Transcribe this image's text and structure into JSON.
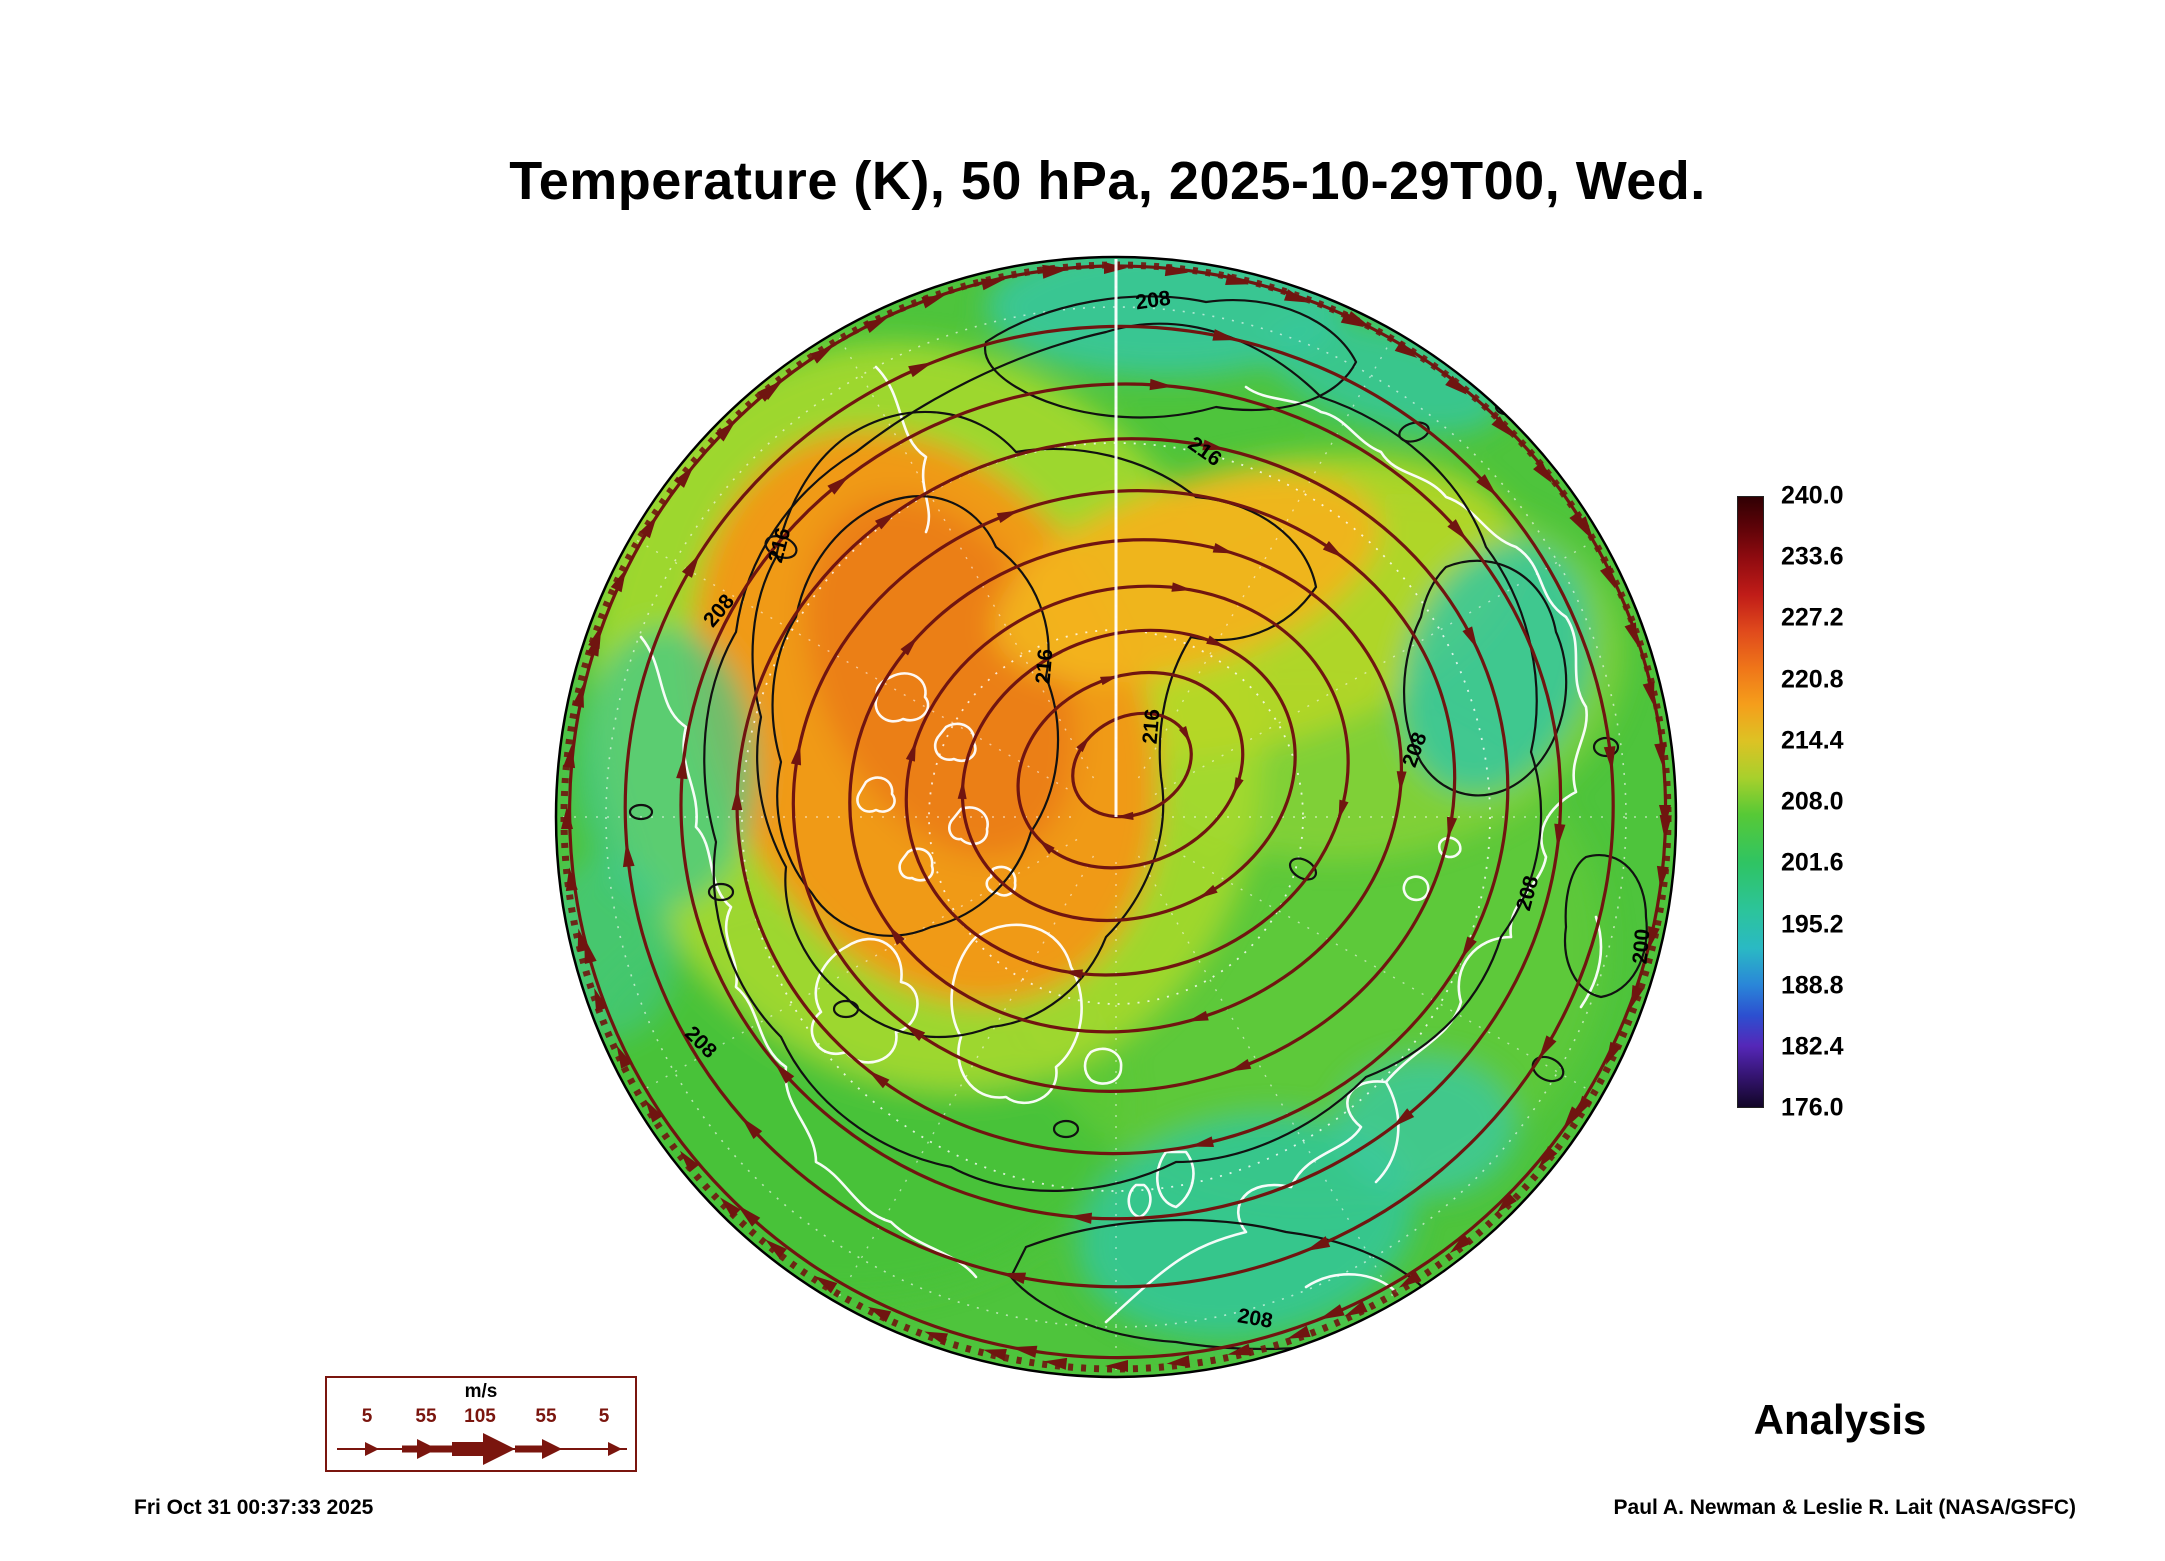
{
  "title": "Temperature (K), 50 hPa, 2025-10-29T00, Wed.",
  "colorbar": {
    "ticks": [
      "240.0",
      "233.6",
      "227.2",
      "220.8",
      "214.4",
      "208.0",
      "201.6",
      "195.2",
      "188.8",
      "182.4",
      "176.0"
    ]
  },
  "map": {
    "contour_labels": [
      "208",
      "216",
      "216",
      "208",
      "216",
      "216",
      "208",
      "208",
      "200",
      "208",
      "208"
    ]
  },
  "wind_legend": {
    "unit": "m/s",
    "values": [
      "5",
      "55",
      "105",
      "55",
      "5"
    ]
  },
  "analysis_label": "Analysis",
  "footer": {
    "timestamp": "Fri Oct 31 00:37:33 2025",
    "credit": "Paul A. Newman & Leslie R. Lait (NASA/GSFC)"
  },
  "colors": {
    "streamline": "#701510",
    "coastline": "#ffffff",
    "contour": "#111111",
    "warm_anomaly": "#f09a18",
    "base_field": "#4ec43c"
  },
  "chart_data": {
    "type": "heatmap",
    "title": "Temperature (K), 50 hPa, 2025-10-29T00, Wed.",
    "variable": "Temperature",
    "units": "K",
    "level_hPa": 50,
    "valid_time": "2025-10-29T00 (Wednesday)",
    "projection": "Northern Hemisphere polar stereographic (pole-centered disk)",
    "colorbar_range": [
      176.0,
      240.0
    ],
    "colorbar_ticks": [
      240.0,
      233.6,
      227.2,
      220.8,
      214.4,
      208.0,
      201.6,
      195.2,
      188.8,
      182.4,
      176.0
    ],
    "contour_levels_labeled": [
      200,
      208,
      216
    ],
    "field_summary": "Warm region ~216-228 K (orange) over the Canada/Arctic sector; most of hemisphere ~200-212 K (green); scattered cooler ~196-202 K (teal) patches; no values near the 176 or 240 extremes visible",
    "overlays": [
      "dark-red wind streamlines with arrowheads, strongest circumpolar flow at disk edge",
      "black temperature contours",
      "white coastlines",
      "white dotted lat/lon graticule"
    ],
    "wind_scale_ms": [
      5,
      55,
      105,
      55,
      5
    ],
    "legend_position": "colorbar right of map; wind-speed arrow legend bottom-left",
    "annotations": [
      "Analysis",
      "Fri Oct 31 00:37:33 2025",
      "Paul A. Newman & Leslie R. Lait (NASA/GSFC)"
    ]
  }
}
